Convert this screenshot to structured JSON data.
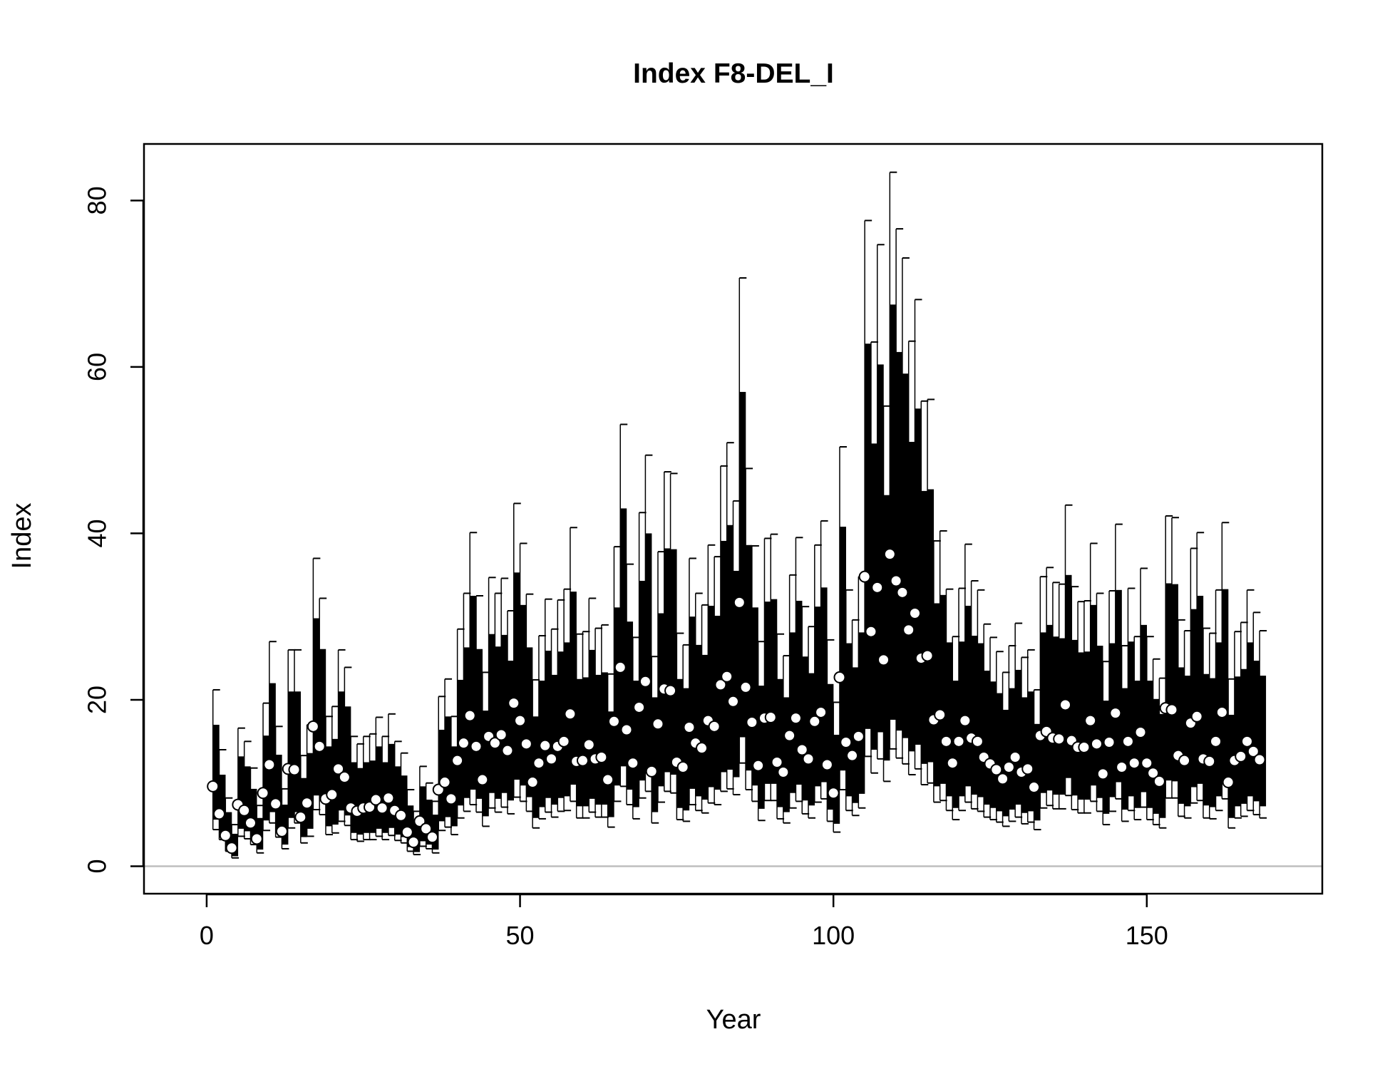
{
  "chart_data": {
    "type": "scatter",
    "title": "Index F8-DEL_I",
    "xlabel": "Year",
    "ylabel": "Index",
    "xlim": [
      -10,
      178
    ],
    "ylim": [
      -3.3,
      86.8
    ],
    "x_ticks": [
      0,
      50,
      100,
      150
    ],
    "y_ticks": [
      0,
      20,
      40,
      60,
      80
    ],
    "x_tick_labels": [
      "0",
      "50",
      "100",
      "150"
    ],
    "y_tick_labels": [
      "0",
      "20",
      "40",
      "60",
      "80"
    ],
    "reference_line_y": 0,
    "grid": false,
    "legend": "none",
    "colors": {
      "marks": "#000000",
      "points_fill": "#ffffff",
      "reference_line": "#bebebe",
      "background": "#ffffff"
    },
    "series": [
      {
        "x": [
          1,
          2,
          3,
          4,
          5,
          6,
          7,
          8,
          9,
          10,
          11,
          12,
          13,
          14,
          15,
          16,
          17,
          18,
          19,
          20,
          21,
          22,
          23,
          24,
          25,
          26,
          27,
          28,
          29,
          30,
          31,
          32,
          33,
          34,
          35,
          36,
          37,
          38,
          39,
          40,
          41,
          42,
          43,
          44,
          45,
          46,
          47,
          48,
          49,
          50,
          51,
          52,
          53,
          54,
          55,
          56,
          57,
          58,
          59,
          60,
          61,
          62,
          63,
          64,
          65,
          66,
          67,
          68,
          69,
          70,
          71,
          72,
          73,
          74,
          75,
          76,
          77,
          78,
          79,
          80,
          81,
          82,
          83,
          84,
          85,
          86,
          87,
          88,
          89,
          90,
          91,
          92,
          93,
          94,
          95,
          96,
          97,
          98,
          99,
          100,
          101,
          102,
          103,
          104,
          105,
          106,
          107,
          108,
          109,
          110,
          111,
          112,
          113,
          114,
          115,
          116,
          117,
          118,
          119,
          120,
          121,
          122,
          123,
          124,
          125,
          126,
          127,
          128,
          129,
          130,
          131,
          132,
          133,
          134,
          135,
          136,
          137,
          138,
          139,
          140,
          141,
          142,
          143,
          144,
          145,
          146,
          147,
          148,
          149,
          150,
          151,
          152,
          153,
          154,
          155,
          156,
          157,
          158,
          159,
          160,
          161,
          162,
          163,
          164,
          165,
          166,
          167,
          168
        ],
        "values": [
          9.6,
          6.3,
          3.7,
          2.2,
          7.4,
          6.7,
          5.2,
          3.3,
          8.8,
          12.2,
          7.5,
          4.2,
          11.7,
          11.6,
          5.9,
          7.6,
          16.8,
          14.4,
          8.1,
          8.6,
          11.7,
          10.7,
          7.0,
          6.6,
          7.0,
          7.1,
          8.0,
          7.0,
          8.2,
          6.7,
          6.1,
          4.1,
          2.9,
          5.4,
          4.5,
          3.5,
          9.2,
          10.1,
          8.1,
          12.7,
          14.8,
          18.1,
          14.4,
          10.4,
          15.6,
          14.8,
          15.8,
          13.9,
          19.6,
          17.5,
          14.7,
          10.1,
          12.4,
          14.5,
          12.9,
          14.4,
          15.0,
          18.3,
          12.6,
          12.7,
          14.6,
          12.9,
          13.1,
          10.4,
          17.4,
          23.9,
          16.4,
          12.4,
          19.1,
          22.2,
          11.4,
          17.1,
          21.3,
          21.1,
          12.5,
          11.9,
          16.7,
          14.8,
          14.2,
          17.5,
          16.8,
          21.8,
          22.8,
          19.8,
          31.7,
          21.5,
          17.3,
          12.1,
          17.8,
          17.9,
          12.5,
          11.3,
          15.7,
          17.8,
          14.0,
          12.9,
          17.4,
          18.5,
          12.2,
          8.8,
          22.7,
          14.9,
          13.3,
          15.6,
          34.8,
          28.2,
          33.5,
          24.8,
          37.5,
          34.3,
          32.9,
          28.4,
          30.4,
          25.0,
          25.3,
          17.6,
          18.2,
          15.0,
          12.4,
          15.0,
          17.5,
          15.4,
          15.0,
          13.1,
          12.3,
          11.6,
          10.5,
          11.9,
          13.1,
          11.3,
          11.7,
          9.5,
          15.7,
          16.2,
          15.4,
          15.3,
          19.4,
          15.1,
          14.3,
          14.3,
          17.5,
          14.7,
          11.1,
          14.9,
          18.4,
          11.9,
          15.0,
          12.4,
          16.1,
          12.4,
          11.2,
          10.2,
          19.0,
          18.8,
          13.3,
          12.7,
          17.2,
          18.0,
          12.9,
          12.6,
          15.0,
          18.5,
          10.1,
          12.7,
          13.2,
          15.0,
          13.8,
          12.8
        ],
        "lower": [
          5.6,
          4.0,
          2.3,
          1.2,
          4.5,
          4.2,
          3.2,
          2.0,
          5.5,
          6.5,
          4.4,
          2.6,
          5.8,
          6.5,
          3.5,
          4.5,
          8.5,
          7.8,
          4.8,
          5.0,
          6.7,
          6.1,
          4.0,
          3.8,
          4.0,
          4.0,
          4.5,
          4.0,
          4.6,
          3.8,
          3.5,
          2.3,
          1.7,
          3.0,
          2.6,
          2.0,
          5.4,
          5.9,
          4.8,
          7.3,
          8.2,
          9.2,
          8.1,
          6.0,
          8.8,
          8.1,
          8.8,
          7.9,
          10.4,
          9.7,
          8.3,
          5.8,
          7.1,
          8.2,
          7.4,
          8.2,
          8.4,
          9.8,
          7.2,
          7.2,
          8.1,
          7.4,
          7.4,
          5.9,
          9.7,
          12.0,
          9.2,
          7.1,
          10.3,
          11.3,
          6.5,
          9.6,
          11.3,
          11.0,
          7.0,
          6.7,
          9.3,
          8.4,
          8.0,
          9.5,
          9.2,
          11.3,
          11.6,
          10.7,
          15.5,
          11.5,
          9.7,
          6.9,
          9.9,
          9.9,
          7.1,
          6.5,
          8.8,
          9.8,
          7.9,
          7.3,
          9.6,
          10.1,
          6.8,
          5.1,
          11.5,
          8.4,
          7.6,
          8.7,
          16.5,
          14.0,
          16.1,
          12.7,
          17.6,
          16.3,
          15.4,
          13.8,
          14.6,
          12.3,
          12.5,
          9.6,
          9.9,
          8.4,
          7.0,
          8.4,
          9.6,
          8.6,
          8.3,
          7.4,
          7.0,
          6.6,
          6.0,
          6.8,
          7.4,
          6.4,
          6.6,
          5.5,
          8.8,
          9.1,
          8.6,
          8.6,
          10.6,
          8.5,
          8.0,
          8.0,
          9.7,
          8.2,
          6.3,
          8.3,
          10.1,
          6.8,
          8.4,
          7.0,
          8.9,
          7.0,
          6.3,
          5.8,
          10.3,
          10.2,
          7.5,
          7.2,
          9.5,
          9.9,
          7.3,
          7.1,
          8.4,
          10.1,
          5.8,
          7.2,
          7.5,
          8.4,
          7.8,
          7.2
        ],
        "upper": [
          17.0,
          11.0,
          6.5,
          3.9,
          13.2,
          12.0,
          9.3,
          5.8,
          15.7,
          22.0,
          13.4,
          7.4,
          21.0,
          21.0,
          10.6,
          13.6,
          29.8,
          26.1,
          14.4,
          15.3,
          21.0,
          19.2,
          12.5,
          11.8,
          12.5,
          12.7,
          14.4,
          12.5,
          14.7,
          12.0,
          10.9,
          7.3,
          5.2,
          9.6,
          8.0,
          6.2,
          16.4,
          18.0,
          14.4,
          22.4,
          26.3,
          32.5,
          26.1,
          18.7,
          27.9,
          26.4,
          27.8,
          24.7,
          35.3,
          31.4,
          26.3,
          18.0,
          22.3,
          25.9,
          23.0,
          25.8,
          26.9,
          33.0,
          22.5,
          22.7,
          26.0,
          23.0,
          23.3,
          18.6,
          31.1,
          43.0,
          29.4,
          22.3,
          34.3,
          40.0,
          20.3,
          30.4,
          38.2,
          38.1,
          22.5,
          21.4,
          30.0,
          26.6,
          25.4,
          31.3,
          30.1,
          39.1,
          41.0,
          35.5,
          57.0,
          38.6,
          31.1,
          21.7,
          31.8,
          32.1,
          22.5,
          20.3,
          28.1,
          31.9,
          25.2,
          23.2,
          31.2,
          33.5,
          21.9,
          15.8,
          40.8,
          26.8,
          23.9,
          28.1,
          62.8,
          50.8,
          60.3,
          44.6,
          67.5,
          61.8,
          59.2,
          51.0,
          55.0,
          45.1,
          45.3,
          31.6,
          32.6,
          26.9,
          22.3,
          27.0,
          31.3,
          27.7,
          26.8,
          23.5,
          22.2,
          20.8,
          18.8,
          21.4,
          23.6,
          20.3,
          21.0,
          17.1,
          28.1,
          29.0,
          27.6,
          27.4,
          35.0,
          27.2,
          25.7,
          25.8,
          31.4,
          26.5,
          19.9,
          26.8,
          33.2,
          21.4,
          27.0,
          22.3,
          29.0,
          22.3,
          20.1,
          18.3,
          34.0,
          33.9,
          23.9,
          22.9,
          30.9,
          32.5,
          23.1,
          22.6,
          26.9,
          33.3,
          18.2,
          22.8,
          23.7,
          26.9,
          24.7,
          22.9
        ],
        "upper_whisker": [
          21.2,
          14.0,
          8.2,
          5.0,
          16.6,
          15.0,
          11.8,
          7.3,
          19.6,
          27.0,
          16.8,
          9.3,
          26.0,
          26.0,
          13.3,
          17.0,
          37.0,
          32.2,
          18.0,
          19.2,
          26.0,
          23.9,
          15.6,
          14.7,
          15.6,
          15.9,
          17.9,
          15.6,
          18.3,
          15.0,
          13.6,
          9.2,
          6.6,
          12.0,
          10.0,
          7.8,
          20.4,
          22.5,
          18.0,
          28.5,
          32.8,
          40.1,
          32.5,
          23.3,
          34.7,
          32.8,
          34.6,
          30.7,
          43.6,
          38.8,
          32.7,
          22.4,
          27.7,
          32.1,
          28.5,
          32.0,
          33.3,
          40.7,
          27.9,
          28.2,
          32.2,
          28.6,
          29.0,
          23.1,
          38.4,
          53.1,
          36.3,
          27.5,
          42.5,
          49.4,
          25.2,
          37.8,
          47.4,
          47.2,
          28.0,
          26.6,
          37.0,
          32.8,
          31.4,
          38.6,
          37.2,
          48.1,
          50.9,
          43.9,
          70.7,
          47.8,
          38.5,
          27.0,
          39.4,
          39.9,
          27.9,
          25.3,
          35.0,
          39.5,
          31.2,
          28.8,
          38.6,
          41.5,
          27.2,
          19.7,
          50.4,
          33.2,
          29.6,
          34.8,
          77.6,
          63.0,
          74.7,
          55.3,
          83.4,
          76.6,
          73.1,
          63.1,
          68.1,
          55.9,
          56.1,
          39.1,
          40.3,
          33.3,
          27.6,
          33.4,
          38.7,
          34.3,
          33.2,
          29.1,
          27.5,
          25.8,
          23.3,
          26.5,
          29.2,
          25.1,
          26.0,
          21.2,
          34.8,
          35.9,
          34.1,
          33.9,
          43.4,
          33.6,
          31.8,
          31.9,
          38.8,
          32.8,
          24.6,
          33.1,
          41.1,
          26.5,
          33.4,
          27.6,
          35.8,
          27.6,
          24.9,
          22.6,
          42.1,
          41.9,
          29.6,
          28.3,
          38.2,
          40.1,
          28.6,
          28.0,
          33.2,
          41.3,
          22.5,
          28.2,
          29.3,
          33.2,
          30.5,
          28.3
        ],
        "lower_whisker": [
          4.4,
          3.2,
          1.8,
          1.0,
          3.6,
          3.3,
          2.6,
          1.6,
          4.3,
          5.2,
          3.5,
          2.1,
          4.6,
          5.2,
          2.8,
          3.6,
          6.8,
          6.2,
          3.8,
          4.0,
          5.4,
          4.9,
          3.2,
          3.0,
          3.2,
          3.2,
          3.6,
          3.2,
          3.7,
          3.1,
          2.8,
          1.8,
          1.4,
          2.4,
          2.1,
          1.6,
          4.3,
          4.7,
          3.8,
          5.8,
          6.6,
          7.4,
          6.5,
          4.8,
          7.0,
          6.5,
          7.1,
          6.3,
          8.3,
          7.8,
          6.6,
          4.6,
          5.7,
          6.5,
          5.9,
          6.6,
          6.7,
          7.8,
          5.8,
          5.8,
          6.5,
          5.9,
          5.9,
          4.7,
          7.8,
          9.6,
          7.4,
          5.7,
          8.2,
          9.0,
          5.2,
          7.7,
          9.0,
          8.8,
          5.6,
          5.4,
          7.4,
          6.7,
          6.4,
          7.6,
          7.4,
          9.0,
          9.3,
          8.6,
          12.4,
          9.2,
          7.8,
          5.5,
          7.9,
          7.9,
          5.7,
          5.2,
          7.0,
          7.8,
          6.3,
          5.8,
          7.7,
          8.1,
          5.4,
          4.1,
          9.2,
          6.7,
          6.1,
          7.0,
          13.2,
          11.2,
          12.9,
          10.2,
          14.1,
          13.0,
          12.3,
          11.0,
          11.7,
          9.8,
          10.0,
          7.7,
          7.9,
          6.7,
          5.6,
          6.7,
          7.7,
          6.9,
          6.6,
          5.9,
          5.6,
          5.3,
          4.8,
          5.4,
          5.9,
          5.1,
          5.3,
          4.4,
          7.0,
          7.3,
          6.9,
          6.9,
          8.5,
          6.8,
          6.4,
          6.4,
          7.8,
          6.6,
          5.0,
          6.6,
          8.1,
          5.4,
          6.7,
          5.6,
          7.1,
          5.6,
          5.0,
          4.6,
          8.2,
          8.2,
          6.0,
          5.8,
          7.6,
          7.9,
          5.8,
          5.7,
          6.7,
          8.1,
          4.6,
          5.8,
          6.0,
          6.7,
          6.2,
          5.8
        ]
      }
    ]
  }
}
